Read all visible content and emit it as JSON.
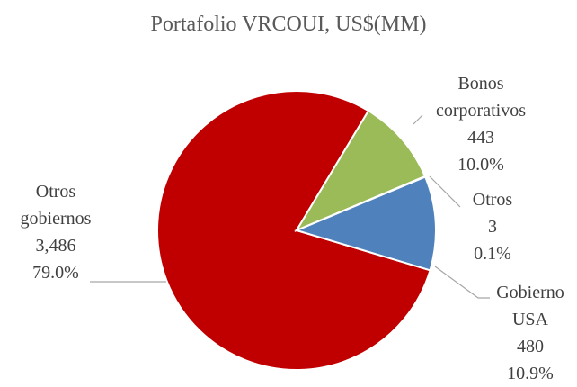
{
  "chart_data": {
    "type": "pie",
    "title": "Portafolio VRCOUI, US$(MM)",
    "categories": [
      "Otros gobiernos",
      "Bonos corporativos",
      "Otros",
      "Gobierno USA"
    ],
    "values": [
      3486,
      443,
      3,
      480
    ],
    "value_labels": [
      "3,486",
      "443",
      "3",
      "480"
    ],
    "percent_labels": [
      "79.0%",
      "10.0%",
      "0.1%",
      "10.9%"
    ],
    "colors": [
      "#c00000",
      "#9bbb59",
      "#8064a2",
      "#4f81bd"
    ]
  }
}
